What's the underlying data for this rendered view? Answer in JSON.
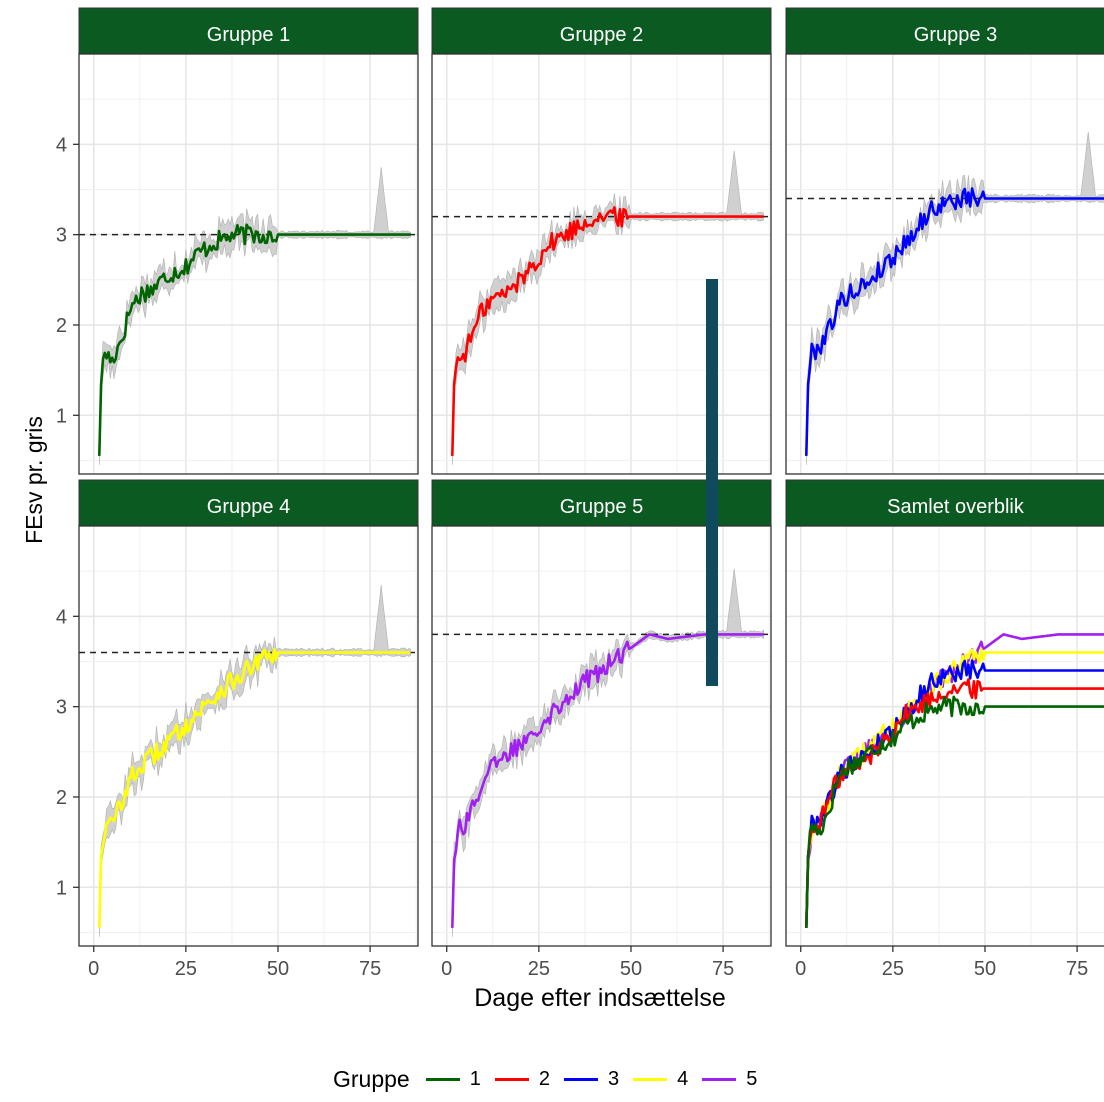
{
  "chart_data": {
    "type": "line",
    "ylabel": "FEsv pr. gris",
    "xlabel": "Dage efter indsættelse",
    "xlim": [
      -4,
      88
    ],
    "ylim": [
      0.35,
      5.0
    ],
    "x_ticks": [
      "0",
      "25",
      "50",
      "75"
    ],
    "y_ticks": [
      "1",
      "2",
      "3",
      "4"
    ],
    "grid": true,
    "legend_position": "bottom",
    "legend": {
      "title": "Gruppe",
      "items": [
        {
          "label": "1",
          "color": "#006400"
        },
        {
          "label": "2",
          "color": "#ff0000"
        },
        {
          "label": "3",
          "color": "#0000ff"
        },
        {
          "label": "4",
          "color": "#ffff00"
        },
        {
          "label": "5",
          "color": "#a020f0"
        }
      ]
    },
    "panels": [
      {
        "title": "Gruppe 1",
        "color": "#006400",
        "target": 3.0,
        "series_points": [
          [
            1.5,
            0.55
          ],
          [
            2,
            1.4
          ],
          [
            3,
            1.7
          ],
          [
            5,
            1.6
          ],
          [
            8,
            1.9
          ],
          [
            10,
            2.2
          ],
          [
            13,
            2.35
          ],
          [
            16,
            2.4
          ],
          [
            20,
            2.55
          ],
          [
            25,
            2.65
          ],
          [
            28,
            2.78
          ],
          [
            32,
            2.9
          ],
          [
            35,
            2.95
          ],
          [
            38,
            3.0
          ],
          [
            50,
            3.0
          ],
          [
            60,
            3.0
          ],
          [
            70,
            3.0
          ],
          [
            80,
            3.0
          ],
          [
            86,
            3.0
          ]
        ]
      },
      {
        "title": "Gruppe 2",
        "color": "#ff0000",
        "target": 3.2,
        "series_points": [
          [
            1.5,
            0.55
          ],
          [
            2,
            1.4
          ],
          [
            3,
            1.6
          ],
          [
            5,
            1.7
          ],
          [
            8,
            2.0
          ],
          [
            10,
            2.2
          ],
          [
            13,
            2.3
          ],
          [
            16,
            2.35
          ],
          [
            20,
            2.5
          ],
          [
            25,
            2.75
          ],
          [
            28,
            2.9
          ],
          [
            32,
            3.0
          ],
          [
            36,
            3.1
          ],
          [
            40,
            3.2
          ],
          [
            50,
            3.2
          ],
          [
            60,
            3.2
          ],
          [
            70,
            3.2
          ],
          [
            80,
            3.2
          ],
          [
            86,
            3.2
          ]
        ]
      },
      {
        "title": "Gruppe 3",
        "color": "#0000ff",
        "target": 3.4,
        "series_points": [
          [
            1.5,
            0.55
          ],
          [
            2,
            1.4
          ],
          [
            3,
            1.7
          ],
          [
            5,
            1.75
          ],
          [
            8,
            2.0
          ],
          [
            10,
            2.2
          ],
          [
            13,
            2.35
          ],
          [
            16,
            2.4
          ],
          [
            20,
            2.55
          ],
          [
            25,
            2.75
          ],
          [
            28,
            2.9
          ],
          [
            32,
            3.1
          ],
          [
            36,
            3.3
          ],
          [
            40,
            3.35
          ],
          [
            44,
            3.4
          ],
          [
            50,
            3.4
          ],
          [
            60,
            3.4
          ],
          [
            70,
            3.4
          ],
          [
            80,
            3.4
          ],
          [
            86,
            3.4
          ]
        ]
      },
      {
        "title": "Gruppe 4",
        "color": "#ffff00",
        "target": 3.6,
        "series_points": [
          [
            1.5,
            0.55
          ],
          [
            2,
            1.4
          ],
          [
            3,
            1.65
          ],
          [
            5,
            1.7
          ],
          [
            8,
            2.0
          ],
          [
            10,
            2.2
          ],
          [
            13,
            2.35
          ],
          [
            16,
            2.45
          ],
          [
            20,
            2.6
          ],
          [
            25,
            2.8
          ],
          [
            30,
            3.0
          ],
          [
            35,
            3.2
          ],
          [
            40,
            3.35
          ],
          [
            45,
            3.5
          ],
          [
            50,
            3.6
          ],
          [
            60,
            3.6
          ],
          [
            70,
            3.6
          ],
          [
            80,
            3.6
          ],
          [
            86,
            3.6
          ]
        ]
      },
      {
        "title": "Gruppe 5",
        "color": "#a020f0",
        "target": 3.8,
        "series_points": [
          [
            1.5,
            0.55
          ],
          [
            2,
            1.35
          ],
          [
            3,
            1.65
          ],
          [
            5,
            1.7
          ],
          [
            8,
            2.0
          ],
          [
            10,
            2.2
          ],
          [
            13,
            2.35
          ],
          [
            16,
            2.45
          ],
          [
            20,
            2.6
          ],
          [
            25,
            2.8
          ],
          [
            30,
            3.0
          ],
          [
            35,
            3.2
          ],
          [
            40,
            3.35
          ],
          [
            45,
            3.5
          ],
          [
            50,
            3.65
          ],
          [
            55,
            3.8
          ],
          [
            60,
            3.75
          ],
          [
            70,
            3.8
          ],
          [
            80,
            3.8
          ],
          [
            86,
            3.8
          ]
        ]
      },
      {
        "title": "Samlet overblik",
        "overview": true
      }
    ]
  }
}
